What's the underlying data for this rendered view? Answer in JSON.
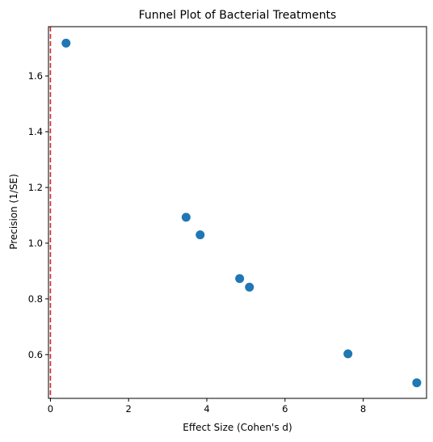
{
  "chart_data": {
    "type": "scatter",
    "title": "Funnel Plot of Bacterial Treatments",
    "xlabel": "Effect Size (Cohen's d)",
    "ylabel": "Precision (1/SE)",
    "xlim": [
      -0.05,
      9.62
    ],
    "ylim": [
      0.443,
      1.777
    ],
    "xticks": [
      0,
      2,
      4,
      6,
      8
    ],
    "yticks": [
      0.6,
      0.8,
      1.0,
      1.2,
      1.4,
      1.6
    ],
    "ytick_labels": [
      "0.6",
      "0.8",
      "1.0",
      "1.2",
      "1.4",
      "1.6"
    ],
    "grid": false,
    "reference_line": {
      "x": 0,
      "color": "#d62728",
      "style": "dashed"
    },
    "point_color": "#1f77b4",
    "points": [
      {
        "x": 0.4,
        "y": 1.718
      },
      {
        "x": 3.47,
        "y": 1.093
      },
      {
        "x": 3.83,
        "y": 1.03
      },
      {
        "x": 4.84,
        "y": 0.873
      },
      {
        "x": 5.09,
        "y": 0.842
      },
      {
        "x": 7.61,
        "y": 0.603
      },
      {
        "x": 9.37,
        "y": 0.499
      }
    ]
  }
}
